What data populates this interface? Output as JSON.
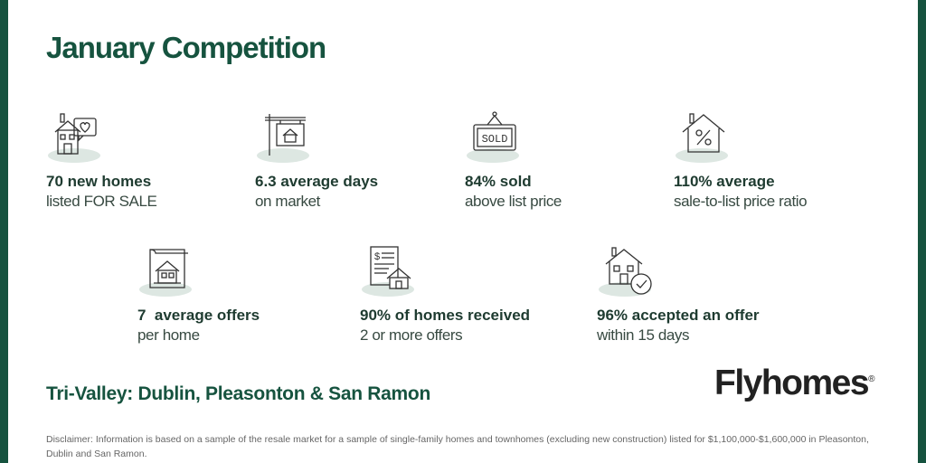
{
  "title": "January Competition",
  "stats": [
    {
      "icon": "house-heart-icon",
      "main": "70 new homes",
      "sub": "listed FOR SALE"
    },
    {
      "icon": "for-sale-sign-icon",
      "main": "6.3 average days",
      "sub": "on market"
    },
    {
      "icon": "sold-sign-icon",
      "main": "84% sold",
      "sub": "above list price",
      "sign_text": "SOLD"
    },
    {
      "icon": "house-percent-icon",
      "main": "110% average",
      "sub": "sale-to-list price ratio"
    },
    {
      "icon": "house-document-icon",
      "main": "7  average offers",
      "sub": "per home"
    },
    {
      "icon": "offer-document-house-icon",
      "main": "90% of homes received",
      "sub": "2 or more offers"
    },
    {
      "icon": "house-check-icon",
      "main": "96% accepted an offer",
      "sub": "within 15 days"
    }
  ],
  "region": "Tri-Valley: Dublin, Pleasonton & San Ramon",
  "brand": {
    "name": "Flyhomes",
    "mark": "®"
  },
  "disclaimer": "Disclaimer: Information is based on a sample of the resale market for a sample of single-family homes and townhomes (excluding new construction) listed for $1,100,000-$1,600,000 in Pleasonton, Dublin and San Ramon.",
  "colors": {
    "brand_green": "#16533f",
    "icon_shadow": "#dde7e2",
    "text_dark": "#1e3b30"
  }
}
